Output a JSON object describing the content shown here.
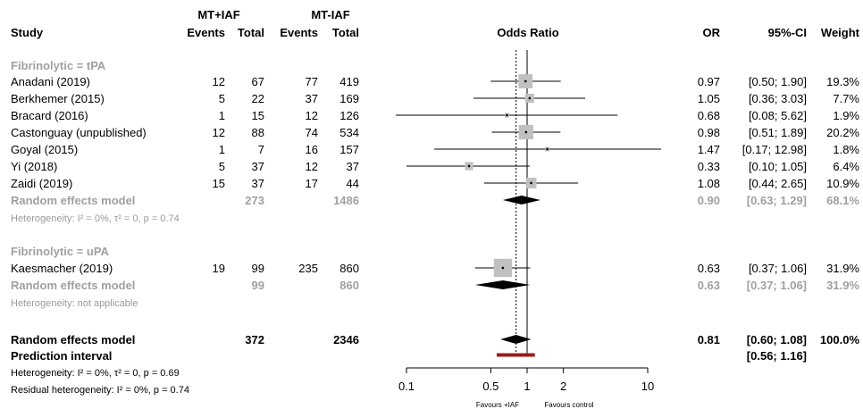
{
  "headers": {
    "study": "Study",
    "group1": "MT+IAF",
    "group2": "MT-IAF",
    "events": "Events",
    "total": "Total",
    "plot": "Odds Ratio",
    "or": "OR",
    "ci": "95%-CI",
    "weight": "Weight"
  },
  "chart_data": {
    "type": "forest",
    "x_scale": "log",
    "xlim": [
      0.1,
      10
    ],
    "ticks": [
      {
        "value": 0.1,
        "label": "0.1"
      },
      {
        "value": 0.5,
        "label": "0.5"
      },
      {
        "value": 1,
        "label": "1"
      },
      {
        "value": 2,
        "label": "2"
      },
      {
        "value": 10,
        "label": "10"
      }
    ],
    "reference_line": 1,
    "pooled_line": 0.81,
    "favours_left": "Favours +IAF",
    "favours_right": "Favours control",
    "subgroups": [
      {
        "label": "Fibrinolytic = tPA",
        "studies": [
          {
            "study": "Anadani (2019)",
            "e1": "12",
            "n1": "67",
            "e2": "77",
            "n2": "419",
            "or": 0.97,
            "lo": 0.5,
            "hi": 1.9,
            "w": 19.3,
            "or_text": "0.97",
            "ci_text": "[0.50; 1.90]",
            "w_text": "19.3%"
          },
          {
            "study": "Berkhemer (2015)",
            "e1": "5",
            "n1": "22",
            "e2": "37",
            "n2": "169",
            "or": 1.05,
            "lo": 0.36,
            "hi": 3.03,
            "w": 7.7,
            "or_text": "1.05",
            "ci_text": "[0.36; 3.03]",
            "w_text": "7.7%"
          },
          {
            "study": "Bracard (2016)",
            "e1": "1",
            "n1": "15",
            "e2": "12",
            "n2": "126",
            "or": 0.68,
            "lo": 0.08,
            "hi": 5.62,
            "w": 1.9,
            "or_text": "0.68",
            "ci_text": "[0.08; 5.62]",
            "w_text": "1.9%"
          },
          {
            "study": "Castonguay (unpublished)",
            "e1": "12",
            "n1": "88",
            "e2": "74",
            "n2": "534",
            "or": 0.98,
            "lo": 0.51,
            "hi": 1.89,
            "w": 20.2,
            "or_text": "0.98",
            "ci_text": "[0.51; 1.89]",
            "w_text": "20.2%"
          },
          {
            "study": "Goyal (2015)",
            "e1": "1",
            "n1": "7",
            "e2": "16",
            "n2": "157",
            "or": 1.47,
            "lo": 0.17,
            "hi": 12.98,
            "w": 1.8,
            "or_text": "1.47",
            "ci_text": "[0.17; 12.98]",
            "w_text": "1.8%"
          },
          {
            "study": "Yi (2018)",
            "e1": "5",
            "n1": "37",
            "e2": "12",
            "n2": "37",
            "or": 0.33,
            "lo": 0.1,
            "hi": 1.05,
            "w": 6.4,
            "or_text": "0.33",
            "ci_text": "[0.10; 1.05]",
            "w_text": "6.4%"
          },
          {
            "study": "Zaidi (2019)",
            "e1": "15",
            "n1": "37",
            "e2": "17",
            "n2": "44",
            "or": 1.08,
            "lo": 0.44,
            "hi": 2.65,
            "w": 10.9,
            "or_text": "1.08",
            "ci_text": "[0.44; 2.65]",
            "w_text": "10.9%"
          }
        ],
        "random": {
          "label": "Random effects model",
          "n1": "273",
          "n2": "1486",
          "or": 0.9,
          "lo": 0.63,
          "hi": 1.29,
          "or_text": "0.90",
          "ci_text": "[0.63; 1.29]",
          "w_text": "68.1%"
        },
        "heterogeneity": "Heterogeneity: I² = 0%, τ² = 0, p = 0.74"
      },
      {
        "label": "Fibrinolytic = uPA",
        "studies": [
          {
            "study": "Kaesmacher (2019)",
            "e1": "19",
            "n1": "99",
            "e2": "235",
            "n2": "860",
            "or": 0.63,
            "lo": 0.37,
            "hi": 1.06,
            "w": 31.9,
            "or_text": "0.63",
            "ci_text": "[0.37; 1.06]",
            "w_text": "31.9%"
          }
        ],
        "random": {
          "label": "Random effects model",
          "n1": "99",
          "n2": "860",
          "or": 0.63,
          "lo": 0.37,
          "hi": 1.06,
          "or_text": "0.63",
          "ci_text": "[0.37; 1.06]",
          "w_text": "31.9%"
        },
        "heterogeneity": "Heterogeneity: not applicable"
      }
    ],
    "overall": {
      "label": "Random effects model",
      "n1": "372",
      "n2": "2346",
      "or": 0.81,
      "lo": 0.6,
      "hi": 1.08,
      "or_text": "0.81",
      "ci_text": "[0.60; 1.08]",
      "w_text": "100.0%"
    },
    "prediction": {
      "label": "Prediction interval",
      "lo": 0.56,
      "hi": 1.16,
      "ci_text": "[0.56; 1.16]",
      "color": "#9b1c1c"
    },
    "overall_heterogeneity": "Heterogeneity: I² = 0%, τ² = 0, p = 0.69",
    "residual_heterogeneity": "Residual heterogeneity: I² = 0%, p = 0.74"
  }
}
